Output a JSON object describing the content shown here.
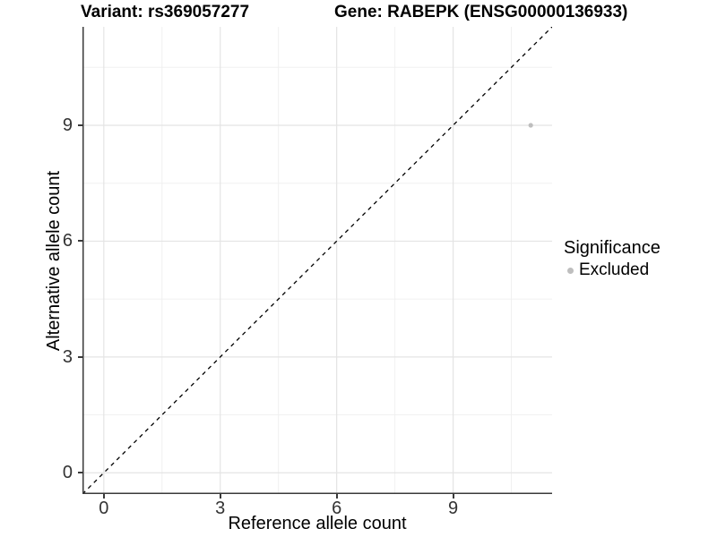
{
  "chart_data": {
    "type": "scatter",
    "title_left": "Variant: rs369057277",
    "title_right": "Gene: RABEPK (ENSG00000136933)",
    "xlabel": "Reference allele count",
    "ylabel": "Alternative allele count",
    "xlim": [
      -0.55,
      11.55
    ],
    "ylim": [
      -0.55,
      11.55
    ],
    "x_ticks": [
      0,
      3,
      6,
      9
    ],
    "y_ticks": [
      0,
      3,
      6,
      9
    ],
    "x_minor_gridlines": [
      1.5,
      4.5,
      7.5,
      10.5
    ],
    "y_minor_gridlines": [
      1.5,
      4.5,
      7.5,
      10.5
    ],
    "grid": true,
    "identity_line": {
      "style": "dashed",
      "x1": -0.55,
      "y1": -0.55,
      "x2": 11.55,
      "y2": 11.55,
      "color": "#000000"
    },
    "series": [
      {
        "name": "Excluded",
        "color": "#bebebe",
        "points": [
          {
            "x": 11,
            "y": 9
          }
        ]
      }
    ],
    "legend": {
      "position": "right",
      "title": "Significance",
      "entries": [
        {
          "label": "Excluded",
          "color": "#bebebe"
        }
      ]
    },
    "style": {
      "background": "#ffffff",
      "grid_major_color": "#e4e4e4",
      "grid_minor_color": "#f0f0f0",
      "axis_line_color": "#3a3a3a",
      "tick_label_color": "#333333",
      "point_color": "#bebebe"
    }
  }
}
